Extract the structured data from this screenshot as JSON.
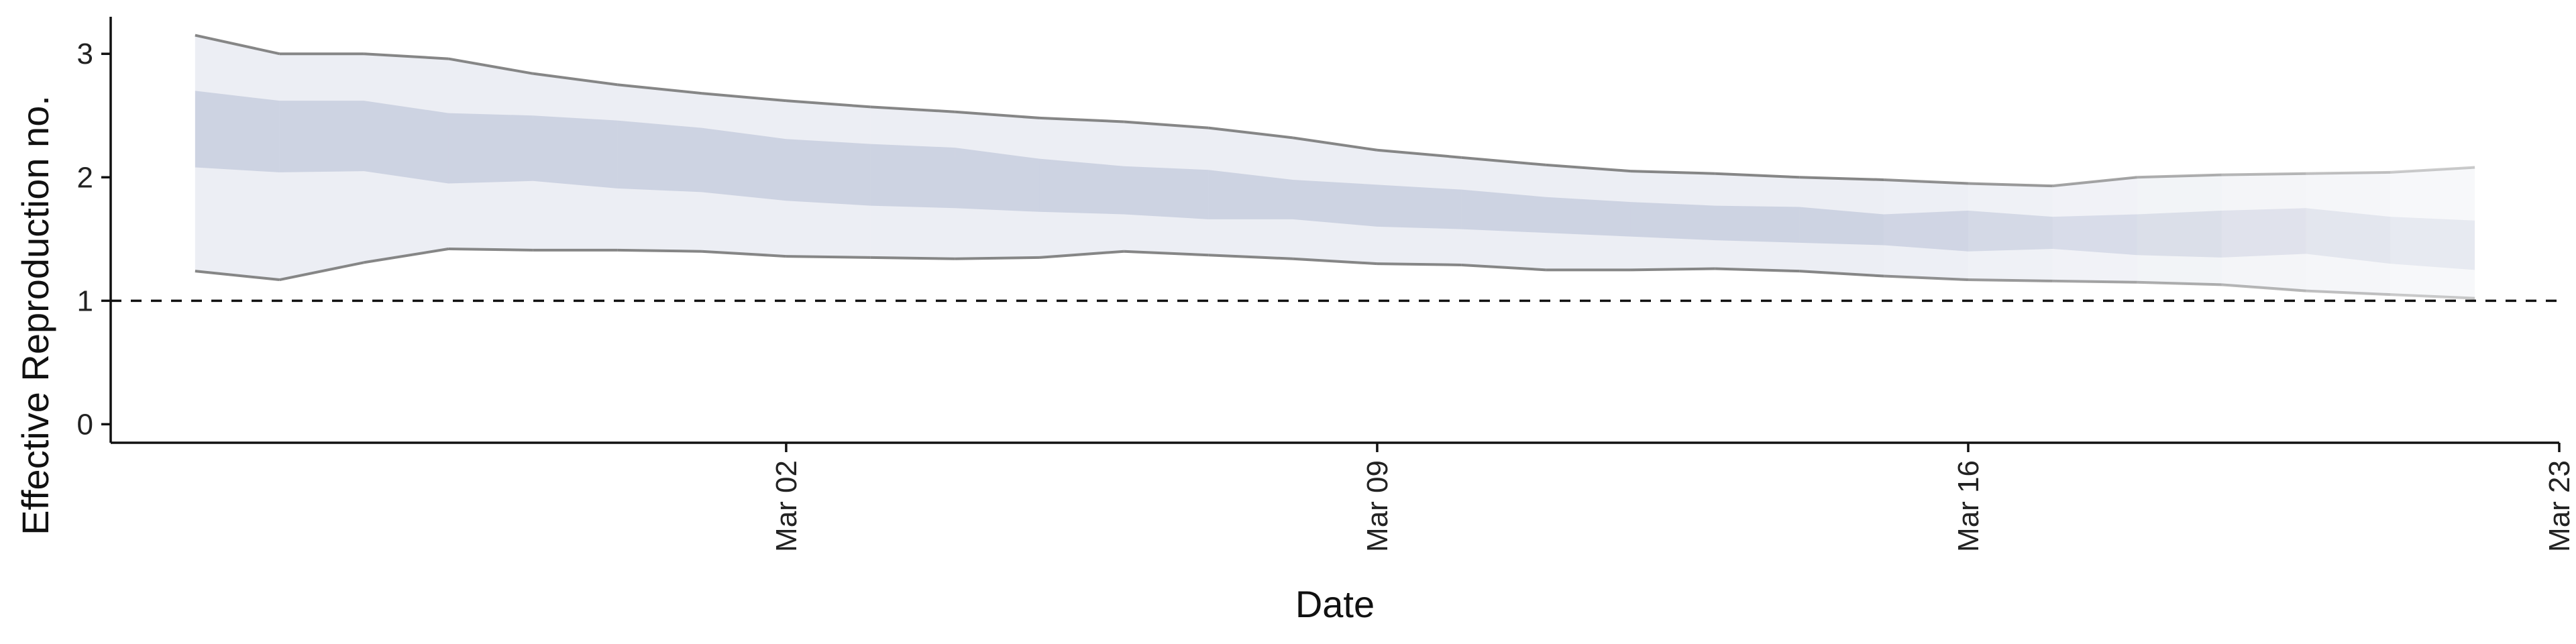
{
  "chart_data": {
    "type": "area",
    "xlabel": "Date",
    "ylabel": "Effective Reproduction no.",
    "ylim": [
      -0.15,
      3.3
    ],
    "xlim": [
      "2020-02-23",
      "2020-03-23"
    ],
    "x_ticks": [
      {
        "date": "2020-03-02",
        "label": "Mar 02"
      },
      {
        "date": "2020-03-09",
        "label": "Mar 09"
      },
      {
        "date": "2020-03-16",
        "label": "Mar 16"
      },
      {
        "date": "2020-03-23",
        "label": "Mar 23"
      }
    ],
    "y_ticks": [
      {
        "value": 0,
        "label": "0"
      },
      {
        "value": 1,
        "label": "1"
      },
      {
        "value": 2,
        "label": "2"
      },
      {
        "value": 3,
        "label": "3"
      }
    ],
    "reference_line": {
      "value": 1,
      "style": "dashed"
    },
    "grid": false,
    "band_color": "#a8b2cc",
    "outer_line_color": "#808080",
    "x": [
      "2020-02-24",
      "2020-02-25",
      "2020-02-26",
      "2020-02-27",
      "2020-02-28",
      "2020-02-29",
      "2020-03-01",
      "2020-03-02",
      "2020-03-03",
      "2020-03-04",
      "2020-03-05",
      "2020-03-06",
      "2020-03-07",
      "2020-03-08",
      "2020-03-09",
      "2020-03-10",
      "2020-03-11",
      "2020-03-12",
      "2020-03-13",
      "2020-03-14",
      "2020-03-15",
      "2020-03-16",
      "2020-03-17",
      "2020-03-18",
      "2020-03-19",
      "2020-03-20",
      "2020-03-21",
      "2020-03-22"
    ],
    "series": [
      {
        "values_upper_90": [
          3.15,
          3.0,
          3.0,
          2.96,
          2.84,
          2.75,
          2.68,
          2.62,
          2.57,
          2.53,
          2.48,
          2.45,
          2.4,
          2.32,
          2.22,
          2.16,
          2.1,
          2.05,
          2.03,
          2.0,
          1.98,
          1.95,
          1.93,
          2.0,
          2.02,
          2.03,
          2.04,
          2.08
        ],
        "values_upper_50": [
          2.7,
          2.62,
          2.62,
          2.52,
          2.5,
          2.46,
          2.4,
          2.31,
          2.27,
          2.24,
          2.15,
          2.09,
          2.06,
          1.98,
          1.94,
          1.9,
          1.84,
          1.8,
          1.77,
          1.76,
          1.7,
          1.73,
          1.68,
          1.7,
          1.73,
          1.75,
          1.68,
          1.65
        ],
        "values_lower_50": [
          2.08,
          2.04,
          2.05,
          1.95,
          1.97,
          1.91,
          1.88,
          1.81,
          1.77,
          1.75,
          1.72,
          1.7,
          1.66,
          1.66,
          1.6,
          1.58,
          1.55,
          1.52,
          1.49,
          1.47,
          1.45,
          1.4,
          1.42,
          1.37,
          1.35,
          1.38,
          1.3,
          1.25
        ],
        "values_lower_90": [
          1.24,
          1.17,
          1.31,
          1.42,
          1.41,
          1.41,
          1.4,
          1.36,
          1.35,
          1.34,
          1.35,
          1.4,
          1.37,
          1.34,
          1.3,
          1.29,
          1.25,
          1.25,
          1.26,
          1.24,
          1.2,
          1.17,
          1.16,
          1.15,
          1.13,
          1.08,
          1.05,
          1.02
        ]
      }
    ]
  }
}
